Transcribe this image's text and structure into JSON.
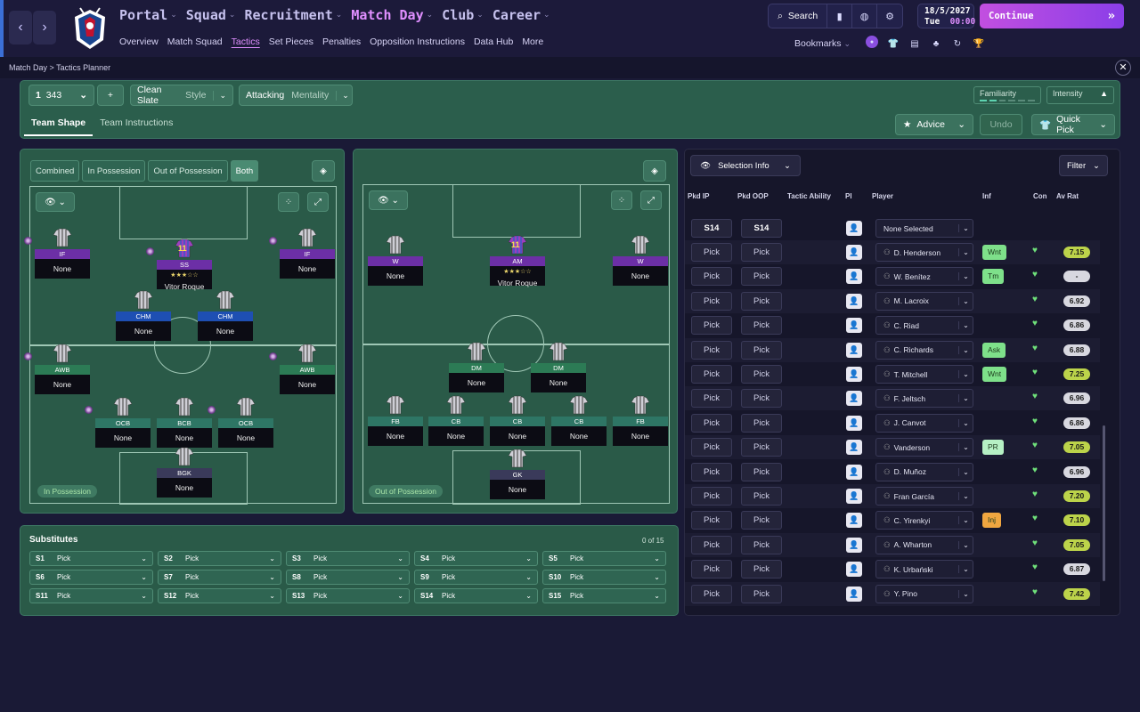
{
  "nav": {
    "main": [
      "Portal",
      "Squad",
      "Recruitment",
      "Match Day",
      "Club",
      "Career"
    ],
    "active_main": "Match Day",
    "sub": [
      "Overview",
      "Match Squad",
      "Tactics",
      "Set Pieces",
      "Penalties",
      "Opposition Instructions",
      "Data Hub",
      "More"
    ],
    "active_sub": "Tactics",
    "search_label": "Search",
    "date": "18/5/2027",
    "day": "Tue",
    "time": "00:00",
    "continue_label": "Continue",
    "bookmarks_label": "Bookmarks"
  },
  "breadcrumb": {
    "part1": "Match Day",
    "part2": "Tactics Planner"
  },
  "tactic": {
    "formation_num": "1",
    "formation": "343",
    "add": "+",
    "style_value": "Clean Slate",
    "style_label": "Style",
    "mentality_value": "Attacking",
    "mentality_label": "Mentality",
    "familiarity": "Familiarity",
    "intensity": "Intensity",
    "tabs": [
      "Team Shape",
      "Team Instructions"
    ],
    "advice": "Advice",
    "undo": "Undo",
    "quick_pick": "Quick Pick"
  },
  "shape": {
    "segments": [
      "Combined",
      "In Possession",
      "Out of Possession",
      "Both"
    ],
    "selected": "Both",
    "in_label": "In Possession",
    "out_label": "Out of Possession"
  },
  "in_possession": [
    {
      "role": "IF",
      "name": "None",
      "cls": "att"
    },
    {
      "role": "SS",
      "name": "Vitor Roque",
      "rating": "★★★☆☆",
      "number": "11",
      "cls": "att"
    },
    {
      "role": "IF",
      "name": "None",
      "cls": "att"
    },
    {
      "role": "CHM",
      "name": "None",
      "cls": "mid"
    },
    {
      "role": "CHM",
      "name": "None",
      "cls": "mid"
    },
    {
      "role": "AWB",
      "name": "None",
      "cls": "def"
    },
    {
      "role": "AWB",
      "name": "None",
      "cls": "def"
    },
    {
      "role": "OCB",
      "name": "None",
      "cls": "fb"
    },
    {
      "role": "BCB",
      "name": "None",
      "cls": "fb"
    },
    {
      "role": "OCB",
      "name": "None",
      "cls": "fb"
    },
    {
      "role": "BGK",
      "name": "None",
      "cls": "gk"
    }
  ],
  "out_possession": [
    {
      "role": "W",
      "name": "None",
      "cls": "att"
    },
    {
      "role": "AM",
      "name": "Vitor Roque",
      "rating": "★★★☆☆",
      "number": "11",
      "cls": "att"
    },
    {
      "role": "W",
      "name": "None",
      "cls": "att"
    },
    {
      "role": "DM",
      "name": "None",
      "cls": "dm"
    },
    {
      "role": "DM",
      "name": "None",
      "cls": "dm"
    },
    {
      "role": "FB",
      "name": "None",
      "cls": "fb"
    },
    {
      "role": "CB",
      "name": "None",
      "cls": "fb"
    },
    {
      "role": "CB",
      "name": "None",
      "cls": "fb"
    },
    {
      "role": "CB",
      "name": "None",
      "cls": "fb"
    },
    {
      "role": "FB",
      "name": "None",
      "cls": "fb"
    },
    {
      "role": "GK",
      "name": "None",
      "cls": "gk"
    }
  ],
  "substitutes": {
    "title": "Substitutes",
    "count": "0 of 15",
    "slots": [
      "S1",
      "S2",
      "S3",
      "S4",
      "S5",
      "S6",
      "S7",
      "S8",
      "S9",
      "S10",
      "S11",
      "S12",
      "S13",
      "S14",
      "S15"
    ],
    "value": "Pick"
  },
  "selection": {
    "info_label": "Selection Info",
    "filter_label": "Filter",
    "headers": [
      "Pkd IP",
      "Pkd OOP",
      "Tactic Ability",
      "Pl",
      "Player",
      "Inf",
      "Con",
      "Av Rat"
    ],
    "top_row": {
      "ip": "S14",
      "oop": "S14",
      "player": "None Selected"
    },
    "rows": [
      {
        "ip": "Pick",
        "oop": "Pick",
        "player": "D. Henderson",
        "inf": "Wnt",
        "infc": "#7ee08a",
        "avr": "7.15",
        "avc": "#bcd34a"
      },
      {
        "ip": "Pick",
        "oop": "Pick",
        "player": "W. Benítez",
        "inf": "Tm",
        "infc": "#7ee08a",
        "avr": "-",
        "avc": "#d8d8e0"
      },
      {
        "ip": "Pick",
        "oop": "Pick",
        "player": "M. Lacroix",
        "inf": "",
        "infc": "",
        "avr": "6.92",
        "avc": "#d8d8e0"
      },
      {
        "ip": "Pick",
        "oop": "Pick",
        "player": "C. Riad",
        "inf": "",
        "infc": "",
        "avr": "6.86",
        "avc": "#d8d8e0"
      },
      {
        "ip": "Pick",
        "oop": "Pick",
        "player": "C. Richards",
        "inf": "Ask",
        "infc": "#7ee08a",
        "avr": "6.88",
        "avc": "#d8d8e0"
      },
      {
        "ip": "Pick",
        "oop": "Pick",
        "player": "T. Mitchell",
        "inf": "Wnt",
        "infc": "#7ee08a",
        "avr": "7.25",
        "avc": "#bcd34a"
      },
      {
        "ip": "Pick",
        "oop": "Pick",
        "player": "F. Jeltsch",
        "inf": "",
        "infc": "",
        "avr": "6.96",
        "avc": "#d8d8e0"
      },
      {
        "ip": "Pick",
        "oop": "Pick",
        "player": "J. Canvot",
        "inf": "",
        "infc": "",
        "avr": "6.86",
        "avc": "#d8d8e0"
      },
      {
        "ip": "Pick",
        "oop": "Pick",
        "player": "Vanderson",
        "inf": "PR",
        "infc": "#b6f0c4",
        "avr": "7.05",
        "avc": "#bcd34a"
      },
      {
        "ip": "Pick",
        "oop": "Pick",
        "player": "D. Muñoz",
        "inf": "",
        "infc": "",
        "avr": "6.96",
        "avc": "#d8d8e0"
      },
      {
        "ip": "Pick",
        "oop": "Pick",
        "player": "Fran García",
        "inf": "",
        "infc": "",
        "avr": "7.20",
        "avc": "#bcd34a"
      },
      {
        "ip": "Pick",
        "oop": "Pick",
        "player": "C. Yirenkyi",
        "inf": "Inj",
        "infc": "#f0a640",
        "avr": "7.10",
        "avc": "#bcd34a"
      },
      {
        "ip": "Pick",
        "oop": "Pick",
        "player": "A. Wharton",
        "inf": "",
        "infc": "",
        "avr": "7.05",
        "avc": "#bcd34a"
      },
      {
        "ip": "Pick",
        "oop": "Pick",
        "player": "K. Urbański",
        "inf": "",
        "infc": "",
        "avr": "6.87",
        "avc": "#d8d8e0"
      },
      {
        "ip": "Pick",
        "oop": "Pick",
        "player": "Y. Pino",
        "inf": "",
        "infc": "",
        "avr": "7.42",
        "avc": "#bcd34a"
      }
    ]
  }
}
